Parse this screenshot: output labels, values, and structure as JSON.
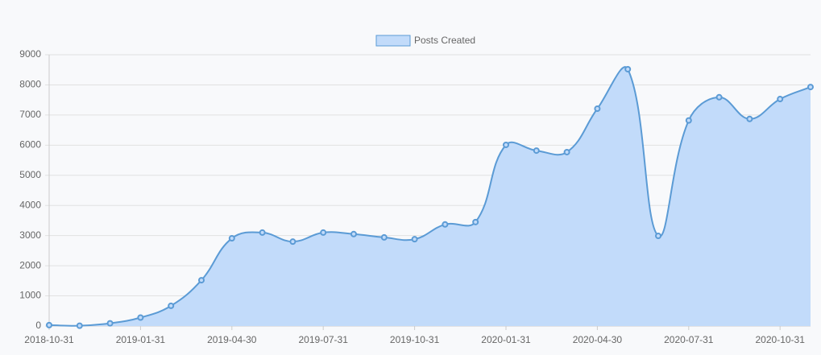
{
  "chart_data": {
    "type": "area",
    "categories": [
      "2018-10-31",
      null,
      null,
      "2019-01-31",
      null,
      null,
      "2019-04-30",
      null,
      null,
      "2019-07-31",
      null,
      null,
      "2019-10-31",
      null,
      null,
      "2020-01-31",
      null,
      null,
      "2020-04-30",
      null,
      null,
      "2020-07-31",
      null,
      null,
      "2020-10-31",
      null
    ],
    "series": [
      {
        "name": "Posts Created",
        "color": "#5b9bd5",
        "fill": "#c2dbfa",
        "values": [
          30,
          10,
          90,
          280,
          670,
          1520,
          2910,
          3100,
          2800,
          3100,
          3050,
          2940,
          2880,
          3370,
          3450,
          6010,
          5820,
          5770,
          7210,
          8520,
          2990,
          6820,
          7590,
          6870,
          7530,
          7930
        ]
      }
    ],
    "ylim": [
      0,
      9000
    ],
    "yticks": [
      0,
      1000,
      2000,
      3000,
      4000,
      5000,
      6000,
      7000,
      8000,
      9000
    ],
    "grid": true,
    "legend": "top"
  }
}
